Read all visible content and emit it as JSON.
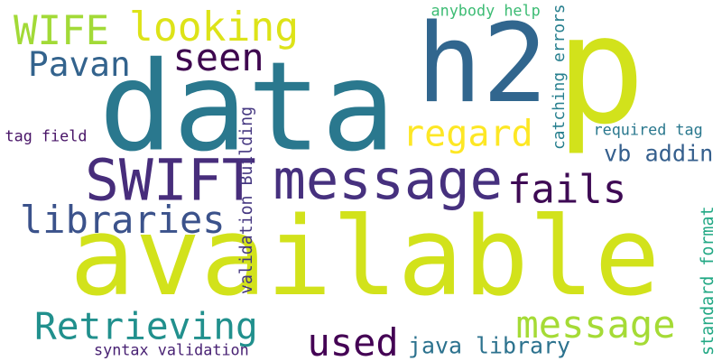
{
  "words": [
    {
      "text": "available",
      "color": "#d2e21b",
      "rot": 0
    },
    {
      "text": "data",
      "color": "#2a788e",
      "rot": 0
    },
    {
      "text": "h2",
      "color": "#31668e",
      "rot": 0
    },
    {
      "text": "p",
      "color": "#d2e21b",
      "rot": 0
    },
    {
      "text": "SWIFT",
      "color": "#472d7b",
      "rot": 0
    },
    {
      "text": "message",
      "color": "#46307e",
      "rot": 0
    },
    {
      "text": "looking",
      "color": "#dde318",
      "rot": 0
    },
    {
      "text": "WIFE",
      "color": "#a2da37",
      "rot": 0
    },
    {
      "text": "seen",
      "color": "#3e074f",
      "rot": 0
    },
    {
      "text": "Pavan",
      "color": "#33638d",
      "rot": 0
    },
    {
      "text": "regard",
      "color": "#fde725",
      "rot": 0
    },
    {
      "text": "fails",
      "color": "#3e0a54",
      "rot": 0
    },
    {
      "text": "libraries",
      "color": "#3b528b",
      "rot": 0
    },
    {
      "text": "Retrieving",
      "color": "#21908d",
      "rot": 0
    },
    {
      "text": "message",
      "color": "#a5db36",
      "rot": 0
    },
    {
      "text": "used",
      "color": "#440154",
      "rot": 0
    },
    {
      "text": "java library",
      "color": "#2c728e",
      "rot": 0
    },
    {
      "text": "syntax validation",
      "color": "#482173",
      "rot": 0
    },
    {
      "text": "vb addin",
      "color": "#355f8d",
      "rot": 0
    },
    {
      "text": "required tag",
      "color": "#2a788e",
      "rot": 0
    },
    {
      "text": "tag field",
      "color": "#481467",
      "rot": 0
    },
    {
      "text": "anybody help",
      "color": "#3dbc74",
      "rot": 0
    },
    {
      "text": "catching errors",
      "color": "#277f8e",
      "rot": -90
    },
    {
      "text": "validation Building",
      "color": "#453781",
      "rot": -90
    },
    {
      "text": "standard format",
      "color": "#22a884",
      "rot": -90
    }
  ]
}
